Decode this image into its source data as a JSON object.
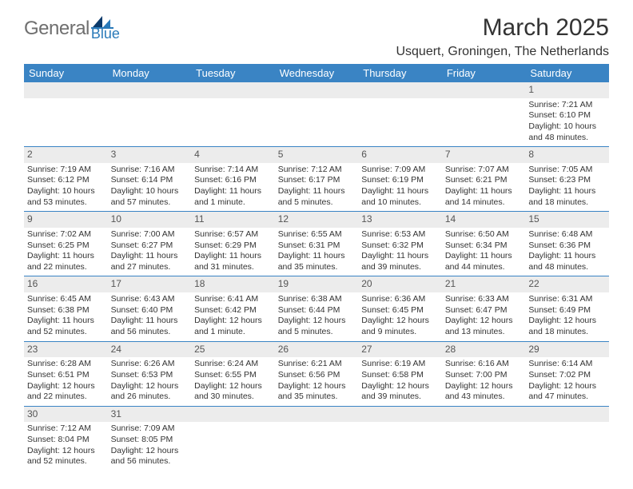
{
  "logo": {
    "general": "General",
    "blue": "Blue"
  },
  "title": "March 2025",
  "location": "Usquert, Groningen, The Netherlands",
  "colors": {
    "header_bg": "#3a84c4",
    "header_text": "#ffffff",
    "numrow_bg": "#ececec",
    "border": "#3a84c4",
    "logo_gray": "#6f6f6f",
    "logo_blue": "#2a7ab9"
  },
  "day_headers": [
    "Sunday",
    "Monday",
    "Tuesday",
    "Wednesday",
    "Thursday",
    "Friday",
    "Saturday"
  ],
  "weeks": [
    {
      "nums": [
        "",
        "",
        "",
        "",
        "",
        "",
        "1"
      ],
      "cells": [
        "",
        "",
        "",
        "",
        "",
        "",
        "Sunrise: 7:21 AM\nSunset: 6:10 PM\nDaylight: 10 hours and 48 minutes."
      ]
    },
    {
      "nums": [
        "2",
        "3",
        "4",
        "5",
        "6",
        "7",
        "8"
      ],
      "cells": [
        "Sunrise: 7:19 AM\nSunset: 6:12 PM\nDaylight: 10 hours and 53 minutes.",
        "Sunrise: 7:16 AM\nSunset: 6:14 PM\nDaylight: 10 hours and 57 minutes.",
        "Sunrise: 7:14 AM\nSunset: 6:16 PM\nDaylight: 11 hours and 1 minute.",
        "Sunrise: 7:12 AM\nSunset: 6:17 PM\nDaylight: 11 hours and 5 minutes.",
        "Sunrise: 7:09 AM\nSunset: 6:19 PM\nDaylight: 11 hours and 10 minutes.",
        "Sunrise: 7:07 AM\nSunset: 6:21 PM\nDaylight: 11 hours and 14 minutes.",
        "Sunrise: 7:05 AM\nSunset: 6:23 PM\nDaylight: 11 hours and 18 minutes."
      ]
    },
    {
      "nums": [
        "9",
        "10",
        "11",
        "12",
        "13",
        "14",
        "15"
      ],
      "cells": [
        "Sunrise: 7:02 AM\nSunset: 6:25 PM\nDaylight: 11 hours and 22 minutes.",
        "Sunrise: 7:00 AM\nSunset: 6:27 PM\nDaylight: 11 hours and 27 minutes.",
        "Sunrise: 6:57 AM\nSunset: 6:29 PM\nDaylight: 11 hours and 31 minutes.",
        "Sunrise: 6:55 AM\nSunset: 6:31 PM\nDaylight: 11 hours and 35 minutes.",
        "Sunrise: 6:53 AM\nSunset: 6:32 PM\nDaylight: 11 hours and 39 minutes.",
        "Sunrise: 6:50 AM\nSunset: 6:34 PM\nDaylight: 11 hours and 44 minutes.",
        "Sunrise: 6:48 AM\nSunset: 6:36 PM\nDaylight: 11 hours and 48 minutes."
      ]
    },
    {
      "nums": [
        "16",
        "17",
        "18",
        "19",
        "20",
        "21",
        "22"
      ],
      "cells": [
        "Sunrise: 6:45 AM\nSunset: 6:38 PM\nDaylight: 11 hours and 52 minutes.",
        "Sunrise: 6:43 AM\nSunset: 6:40 PM\nDaylight: 11 hours and 56 minutes.",
        "Sunrise: 6:41 AM\nSunset: 6:42 PM\nDaylight: 12 hours and 1 minute.",
        "Sunrise: 6:38 AM\nSunset: 6:44 PM\nDaylight: 12 hours and 5 minutes.",
        "Sunrise: 6:36 AM\nSunset: 6:45 PM\nDaylight: 12 hours and 9 minutes.",
        "Sunrise: 6:33 AM\nSunset: 6:47 PM\nDaylight: 12 hours and 13 minutes.",
        "Sunrise: 6:31 AM\nSunset: 6:49 PM\nDaylight: 12 hours and 18 minutes."
      ]
    },
    {
      "nums": [
        "23",
        "24",
        "25",
        "26",
        "27",
        "28",
        "29"
      ],
      "cells": [
        "Sunrise: 6:28 AM\nSunset: 6:51 PM\nDaylight: 12 hours and 22 minutes.",
        "Sunrise: 6:26 AM\nSunset: 6:53 PM\nDaylight: 12 hours and 26 minutes.",
        "Sunrise: 6:24 AM\nSunset: 6:55 PM\nDaylight: 12 hours and 30 minutes.",
        "Sunrise: 6:21 AM\nSunset: 6:56 PM\nDaylight: 12 hours and 35 minutes.",
        "Sunrise: 6:19 AM\nSunset: 6:58 PM\nDaylight: 12 hours and 39 minutes.",
        "Sunrise: 6:16 AM\nSunset: 7:00 PM\nDaylight: 12 hours and 43 minutes.",
        "Sunrise: 6:14 AM\nSunset: 7:02 PM\nDaylight: 12 hours and 47 minutes."
      ]
    },
    {
      "nums": [
        "30",
        "31",
        "",
        "",
        "",
        "",
        ""
      ],
      "cells": [
        "Sunrise: 7:12 AM\nSunset: 8:04 PM\nDaylight: 12 hours and 52 minutes.",
        "Sunrise: 7:09 AM\nSunset: 8:05 PM\nDaylight: 12 hours and 56 minutes.",
        "",
        "",
        "",
        "",
        ""
      ]
    }
  ]
}
